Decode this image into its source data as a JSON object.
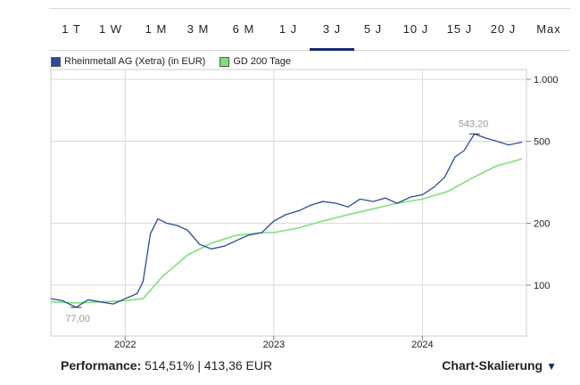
{
  "tabs": [
    "1 T",
    "1 W",
    "1 M",
    "3 M",
    "6 M",
    "1 J",
    "3 J",
    "5 J",
    "10 J",
    "15 J",
    "20 J",
    "Max"
  ],
  "active_tab": "3 J",
  "legend": {
    "series1": "Rheinmetall AG (Xetra) (in EUR)",
    "series2": "GD 200 Tage",
    "series1_color": "#2b4a9a",
    "series2_color": "#7ee07a"
  },
  "chart_data": {
    "type": "line",
    "y_scale": "log",
    "y_ticks": [
      "1.000",
      "500",
      "200",
      "100"
    ],
    "y_tick_values": [
      1000,
      500,
      200,
      100
    ],
    "x_ticks": [
      "2022",
      "2023",
      "2024"
    ],
    "annotations": {
      "high": "543,20",
      "low": "77,00"
    },
    "series": [
      {
        "name": "Rheinmetall AG (Xetra) (in EUR)",
        "color": "#2b4a9a",
        "x": [
          2021.5,
          2021.58,
          2021.67,
          2021.75,
          2021.83,
          2021.92,
          2022.0,
          2022.08,
          2022.12,
          2022.17,
          2022.22,
          2022.28,
          2022.35,
          2022.42,
          2022.5,
          2022.58,
          2022.67,
          2022.75,
          2022.83,
          2022.92,
          2023.0,
          2023.08,
          2023.17,
          2023.25,
          2023.33,
          2023.42,
          2023.5,
          2023.58,
          2023.67,
          2023.75,
          2023.83,
          2023.92,
          2024.0,
          2024.08,
          2024.15,
          2024.22,
          2024.28,
          2024.35,
          2024.42,
          2024.5,
          2024.58,
          2024.67
        ],
        "values": [
          86,
          84,
          78,
          85,
          83,
          81,
          86,
          91,
          104,
          178,
          210,
          200,
          195,
          185,
          158,
          150,
          155,
          165,
          175,
          180,
          205,
          220,
          230,
          245,
          255,
          250,
          240,
          262,
          255,
          265,
          250,
          268,
          275,
          300,
          335,
          420,
          450,
          543,
          520,
          500,
          480,
          495
        ]
      },
      {
        "name": "GD 200 Tage",
        "color": "#7ee07a",
        "x": [
          2021.5,
          2021.67,
          2021.83,
          2022.0,
          2022.12,
          2022.25,
          2022.42,
          2022.58,
          2022.75,
          2022.92,
          2023.0,
          2023.17,
          2023.33,
          2023.5,
          2023.67,
          2023.83,
          2024.0,
          2024.17,
          2024.33,
          2024.5,
          2024.67
        ],
        "values": [
          83,
          82,
          83,
          84,
          86,
          110,
          140,
          160,
          175,
          180,
          180,
          190,
          205,
          220,
          235,
          250,
          262,
          285,
          330,
          380,
          410
        ]
      }
    ]
  },
  "footer": {
    "performance_label": "Performance:",
    "performance_value": "514,51%  |  413,36 EUR",
    "scale_label": "Chart-Skalierung",
    "scale_icon": "▼"
  }
}
